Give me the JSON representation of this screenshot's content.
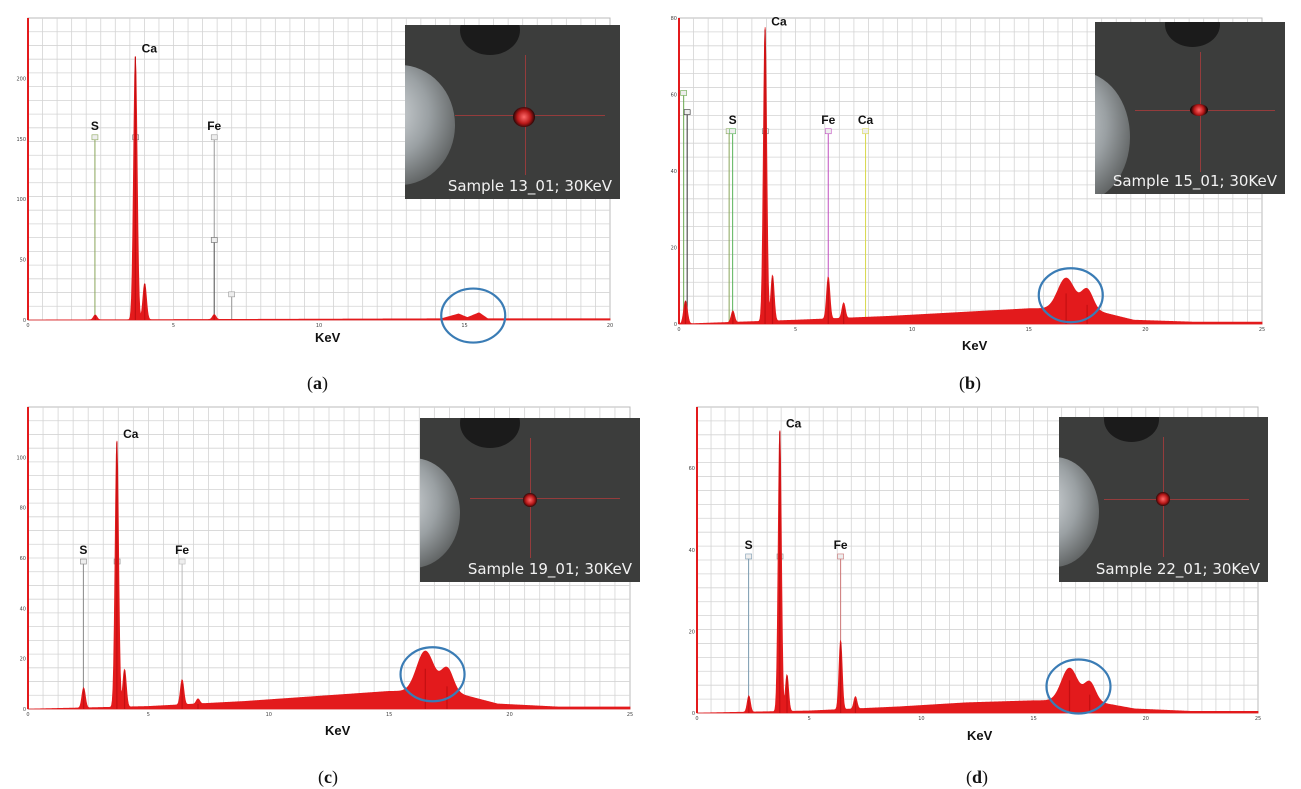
{
  "colors": {
    "spectrum": "#e31a1c",
    "grid": "#d4d4d4",
    "circle": "#3a7cb5",
    "axis": "#555555"
  },
  "chart_data": [
    {
      "type": "area",
      "caption": "a",
      "xlabel": "KeV",
      "xlim": [
        0,
        20
      ],
      "x_ticks": [
        0,
        5,
        10,
        15,
        20
      ],
      "ylim": [
        0,
        250
      ],
      "y_ticks": [
        0,
        50,
        100,
        150,
        200
      ],
      "element_labels": [
        {
          "label": "Ca",
          "x": 3.7
        },
        {
          "label": "S",
          "x": 2.3
        },
        {
          "label": "Fe",
          "x": 6.4
        }
      ],
      "peaks": [
        {
          "x": 2.31,
          "y": 4,
          "w": 0.06
        },
        {
          "x": 3.69,
          "y": 218,
          "w": 0.06
        },
        {
          "x": 4.01,
          "y": 30,
          "w": 0.06
        },
        {
          "x": 6.4,
          "y": 4,
          "w": 0.06
        }
      ],
      "background": [
        {
          "x": 14.2,
          "y": 1
        },
        {
          "x": 14.8,
          "y": 5
        },
        {
          "x": 15.1,
          "y": 2
        },
        {
          "x": 15.5,
          "y": 6
        },
        {
          "x": 15.8,
          "y": 1
        }
      ],
      "marker_lines": [
        {
          "x": 2.3,
          "y": 150,
          "color": "#8aa65a"
        },
        {
          "x": 3.7,
          "y": 150,
          "color": "#777777"
        },
        {
          "x": 6.4,
          "y": 150,
          "color": "#999999"
        },
        {
          "x": 6.4,
          "y": 65,
          "color": "#666666"
        },
        {
          "x": 7.0,
          "y": 20,
          "color": "#999999"
        }
      ],
      "circle": {
        "x": 15.3,
        "y": 2
      },
      "inset_label": "Sample 13_01; 30KeV"
    },
    {
      "type": "area",
      "caption": "b",
      "xlabel": "KeV",
      "xlim": [
        0,
        25
      ],
      "x_ticks": [
        0,
        5,
        10,
        15,
        20,
        25
      ],
      "ylim": [
        0,
        80
      ],
      "y_ticks": [
        0,
        20,
        40,
        60,
        80
      ],
      "element_labels": [
        {
          "label": "Ca",
          "x": 3.7
        },
        {
          "label": "S",
          "x": 2.3
        },
        {
          "label": "Fe",
          "x": 6.4
        },
        {
          "label": "Ca",
          "x": 8.0
        }
      ],
      "peaks": [
        {
          "x": 0.28,
          "y": 6,
          "w": 0.08
        },
        {
          "x": 2.31,
          "y": 3,
          "w": 0.07
        },
        {
          "x": 3.69,
          "y": 77,
          "w": 0.07
        },
        {
          "x": 4.01,
          "y": 12,
          "w": 0.07
        },
        {
          "x": 6.4,
          "y": 11,
          "w": 0.07
        },
        {
          "x": 7.06,
          "y": 4,
          "w": 0.07
        },
        {
          "x": 16.6,
          "y": 8,
          "w": 0.35
        },
        {
          "x": 17.5,
          "y": 5,
          "w": 0.25
        }
      ],
      "background": [
        {
          "x": 5,
          "y": 1
        },
        {
          "x": 9,
          "y": 2
        },
        {
          "x": 12,
          "y": 3
        },
        {
          "x": 15,
          "y": 4
        },
        {
          "x": 17.5,
          "y": 4
        },
        {
          "x": 19.5,
          "y": 1
        },
        {
          "x": 22,
          "y": 0.5
        }
      ],
      "marker_lines": [
        {
          "x": 0.2,
          "y": 60,
          "color": "#6aa84f"
        },
        {
          "x": 0.35,
          "y": 55,
          "color": "#333333"
        },
        {
          "x": 2.15,
          "y": 50,
          "color": "#8aa65a"
        },
        {
          "x": 2.3,
          "y": 50,
          "color": "#59b35a"
        },
        {
          "x": 3.7,
          "y": 50,
          "color": "#777777"
        },
        {
          "x": 6.4,
          "y": 50,
          "color": "#c04fc0"
        },
        {
          "x": 8.0,
          "y": 50,
          "color": "#d8d84a"
        }
      ],
      "circle": {
        "x": 16.8,
        "y": 7
      },
      "inset_label": "Sample 15_01; 30KeV"
    },
    {
      "type": "area",
      "caption": "c",
      "xlabel": "KeV",
      "xlim": [
        0,
        25
      ],
      "x_ticks": [
        0,
        5,
        10,
        15,
        20,
        25
      ],
      "ylim": [
        0,
        120
      ],
      "y_ticks": [
        0,
        20,
        40,
        60,
        80,
        100
      ],
      "element_labels": [
        {
          "label": "Ca",
          "x": 3.7
        },
        {
          "label": "S",
          "x": 2.3
        },
        {
          "label": "Fe",
          "x": 6.4
        }
      ],
      "peaks": [
        {
          "x": 2.31,
          "y": 8,
          "w": 0.07
        },
        {
          "x": 3.69,
          "y": 106,
          "w": 0.07
        },
        {
          "x": 4.01,
          "y": 15,
          "w": 0.07
        },
        {
          "x": 6.4,
          "y": 10,
          "w": 0.07
        },
        {
          "x": 7.06,
          "y": 2,
          "w": 0.07
        },
        {
          "x": 16.5,
          "y": 16,
          "w": 0.35
        },
        {
          "x": 17.4,
          "y": 9,
          "w": 0.25
        }
      ],
      "background": [
        {
          "x": 5,
          "y": 1
        },
        {
          "x": 9,
          "y": 3
        },
        {
          "x": 12,
          "y": 5
        },
        {
          "x": 15,
          "y": 7
        },
        {
          "x": 17.5,
          "y": 7
        },
        {
          "x": 19.5,
          "y": 2
        },
        {
          "x": 22,
          "y": 0.8
        }
      ],
      "marker_lines": [
        {
          "x": 2.3,
          "y": 58,
          "color": "#888888"
        },
        {
          "x": 3.7,
          "y": 58,
          "color": "#888888"
        },
        {
          "x": 6.4,
          "y": 58,
          "color": "#bbbbbb"
        }
      ],
      "circle": {
        "x": 16.8,
        "y": 13
      },
      "inset_label": "Sample 19_01; 30KeV"
    },
    {
      "type": "area",
      "caption": "d",
      "xlabel": "KeV",
      "xlim": [
        0,
        25
      ],
      "x_ticks": [
        0,
        5,
        10,
        15,
        20,
        25
      ],
      "ylim": [
        0,
        75
      ],
      "y_ticks": [
        0,
        20,
        40,
        60
      ],
      "element_labels": [
        {
          "label": "Ca",
          "x": 3.7
        },
        {
          "label": "S",
          "x": 2.3
        },
        {
          "label": "Fe",
          "x": 6.4
        }
      ],
      "peaks": [
        {
          "x": 2.31,
          "y": 4,
          "w": 0.07
        },
        {
          "x": 3.69,
          "y": 69,
          "w": 0.07
        },
        {
          "x": 4.01,
          "y": 9,
          "w": 0.07
        },
        {
          "x": 6.4,
          "y": 17,
          "w": 0.07
        },
        {
          "x": 7.06,
          "y": 3,
          "w": 0.07
        },
        {
          "x": 16.6,
          "y": 8,
          "w": 0.35
        },
        {
          "x": 17.5,
          "y": 4.5,
          "w": 0.25
        }
      ],
      "background": [
        {
          "x": 5,
          "y": 0.5
        },
        {
          "x": 9,
          "y": 1.5
        },
        {
          "x": 12,
          "y": 2.5
        },
        {
          "x": 15,
          "y": 3
        },
        {
          "x": 17.5,
          "y": 3
        },
        {
          "x": 19.5,
          "y": 1
        },
        {
          "x": 22,
          "y": 0.4
        }
      ],
      "marker_lines": [
        {
          "x": 2.3,
          "y": 38,
          "color": "#7a9ab0"
        },
        {
          "x": 3.7,
          "y": 38,
          "color": "#888888"
        },
        {
          "x": 6.4,
          "y": 38,
          "color": "#cc7777"
        }
      ],
      "circle": {
        "x": 17.0,
        "y": 6
      },
      "inset_label": "Sample 22_01; 30KeV"
    }
  ]
}
